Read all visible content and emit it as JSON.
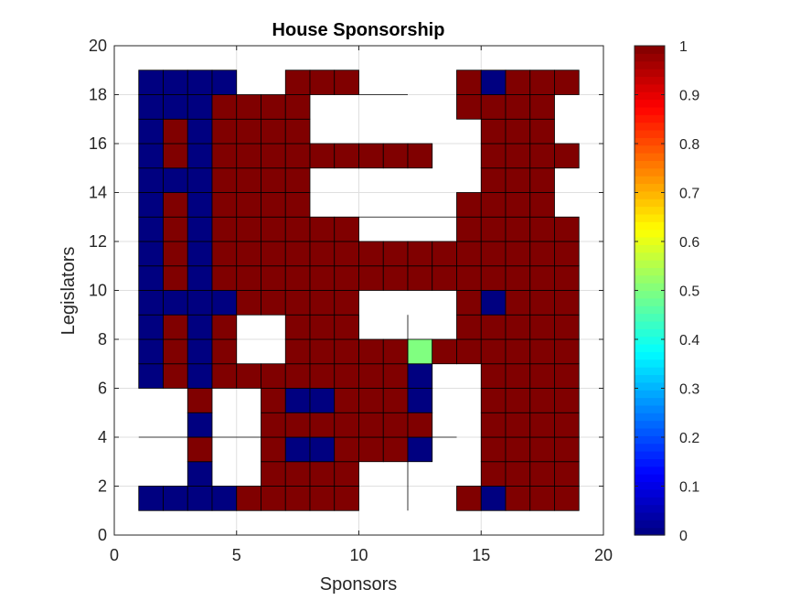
{
  "chart_data": {
    "type": "heatmap",
    "title": "House Sponsorship",
    "xlabel": "Sponsors",
    "ylabel": "Legislators",
    "xlim": [
      0,
      20
    ],
    "ylim": [
      0,
      20
    ],
    "xticks": [
      0,
      5,
      10,
      15,
      20
    ],
    "yticks": [
      0,
      2,
      4,
      6,
      8,
      10,
      12,
      14,
      16,
      18,
      20
    ],
    "grid": true,
    "colormap": "jet",
    "clim": [
      0,
      1
    ],
    "colorbar_ticks": [
      0,
      0.1,
      0.2,
      0.3,
      0.4,
      0.5,
      0.6,
      0.7,
      0.8,
      0.9,
      1
    ],
    "cell_origin": [
      1,
      1
    ],
    "cell_step": 1,
    "rows_bottom_to_top": [
      [
        0,
        0,
        0,
        0,
        1,
        1,
        1,
        1,
        1,
        null,
        null,
        null,
        null,
        1,
        0,
        1,
        1,
        1
      ],
      [
        null,
        null,
        0,
        null,
        null,
        1,
        1,
        1,
        1,
        null,
        null,
        null,
        null,
        null,
        1,
        1,
        1,
        1
      ],
      [
        null,
        null,
        1,
        null,
        null,
        1,
        0,
        0,
        1,
        1,
        1,
        0,
        null,
        null,
        1,
        1,
        1,
        1
      ],
      [
        null,
        null,
        0,
        null,
        null,
        1,
        1,
        1,
        1,
        1,
        1,
        1,
        null,
        null,
        1,
        1,
        1,
        1
      ],
      [
        null,
        null,
        1,
        null,
        null,
        1,
        0,
        0,
        1,
        1,
        1,
        0,
        null,
        null,
        1,
        1,
        1,
        1
      ],
      [
        0,
        1,
        0,
        1,
        1,
        1,
        1,
        1,
        1,
        1,
        1,
        0,
        null,
        null,
        1,
        1,
        1,
        1
      ],
      [
        0,
        1,
        0,
        1,
        null,
        null,
        1,
        1,
        1,
        1,
        1,
        0.5,
        1,
        1,
        1,
        1,
        1,
        1
      ],
      [
        0,
        1,
        0,
        1,
        null,
        null,
        1,
        1,
        1,
        null,
        null,
        null,
        null,
        1,
        1,
        1,
        1,
        1
      ],
      [
        0,
        0,
        0,
        0,
        1,
        1,
        1,
        1,
        1,
        null,
        null,
        null,
        null,
        1,
        0,
        1,
        1,
        1
      ],
      [
        0,
        1,
        0,
        1,
        1,
        1,
        1,
        1,
        1,
        1,
        1,
        1,
        1,
        1,
        1,
        1,
        1,
        1
      ],
      [
        0,
        1,
        0,
        1,
        1,
        1,
        1,
        1,
        1,
        1,
        1,
        1,
        1,
        1,
        1,
        1,
        1,
        1
      ],
      [
        0,
        1,
        0,
        1,
        1,
        1,
        1,
        1,
        1,
        null,
        null,
        null,
        null,
        1,
        1,
        1,
        1,
        1
      ],
      [
        0,
        1,
        0,
        1,
        1,
        1,
        1,
        null,
        null,
        null,
        null,
        null,
        null,
        1,
        1,
        1,
        1,
        null
      ],
      [
        0,
        0,
        0,
        1,
        1,
        1,
        1,
        null,
        null,
        null,
        null,
        null,
        null,
        null,
        1,
        1,
        1,
        null
      ],
      [
        0,
        1,
        0,
        1,
        1,
        1,
        1,
        1,
        1,
        1,
        1,
        1,
        null,
        null,
        1,
        1,
        1,
        1
      ],
      [
        0,
        1,
        0,
        1,
        1,
        1,
        1,
        null,
        null,
        null,
        null,
        null,
        null,
        null,
        1,
        1,
        1,
        null
      ],
      [
        0,
        0,
        0,
        1,
        1,
        1,
        1,
        null,
        null,
        null,
        null,
        null,
        null,
        1,
        1,
        1,
        1,
        null
      ],
      [
        0,
        0,
        0,
        0,
        null,
        null,
        1,
        1,
        1,
        null,
        null,
        null,
        null,
        1,
        0,
        1,
        1,
        1
      ]
    ],
    "outline_lines": [
      [
        [
          1,
          4
        ],
        [
          6,
          4
        ]
      ],
      [
        [
          13,
          4
        ],
        [
          14,
          4
        ]
      ],
      [
        [
          10,
          13
        ],
        [
          14,
          13
        ]
      ],
      [
        [
          10,
          18
        ],
        [
          12,
          18
        ]
      ],
      [
        [
          12,
          1
        ],
        [
          12,
          3
        ]
      ],
      [
        [
          10,
          7
        ],
        [
          10,
          9
        ]
      ],
      [
        [
          12,
          7
        ],
        [
          12,
          9
        ]
      ]
    ]
  }
}
